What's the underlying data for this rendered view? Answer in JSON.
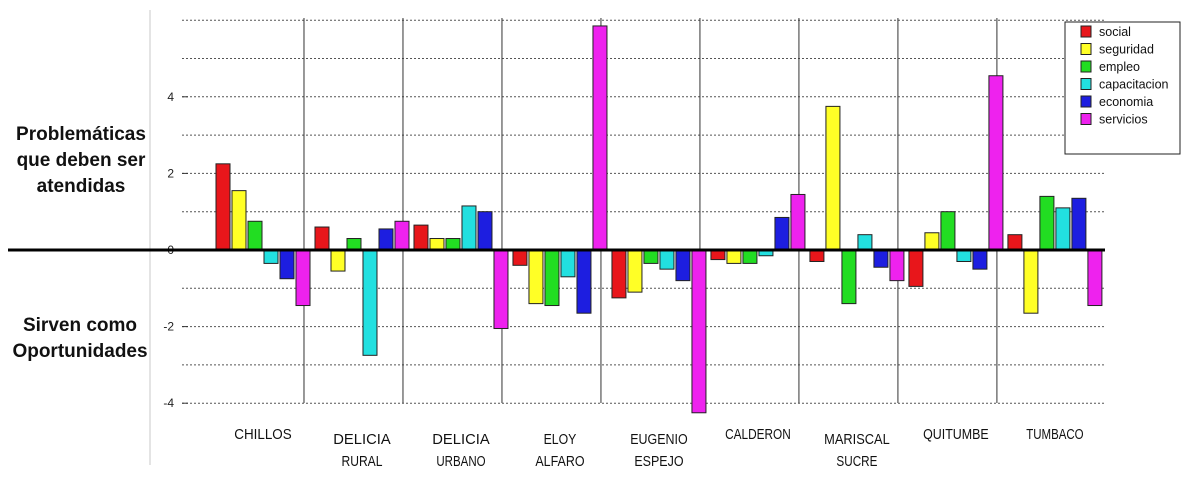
{
  "annotations": {
    "top": [
      "Problemáticas",
      "que deben ser",
      "atendidas"
    ],
    "bottom": [
      "Sirven como",
      "Oportunidades"
    ]
  },
  "chart_data": {
    "type": "bar",
    "title": "",
    "xlabel": "",
    "ylabel": "",
    "ylim": [
      -4.3,
      6.0
    ],
    "yticks": [
      -4,
      -2,
      0,
      2,
      4
    ],
    "grid": true,
    "legend_position": "top-right",
    "categories": [
      [
        "CHILLOS"
      ],
      [
        "DELICIA",
        "RURAL"
      ],
      [
        "DELICIA",
        "URBANO"
      ],
      [
        "ELOY",
        "ALFARO"
      ],
      [
        "EUGENIO",
        "ESPEJO"
      ],
      [
        "CALDERON"
      ],
      [
        "MARISCAL",
        "SUCRE"
      ],
      [
        "QUITUMBE"
      ],
      [
        "TUMBACO"
      ]
    ],
    "series": [
      {
        "name": "social",
        "color": "#e8161b",
        "values": [
          2.25,
          0.6,
          0.65,
          -0.4,
          -1.25,
          -0.25,
          -0.3,
          -0.95,
          0.4
        ]
      },
      {
        "name": "seguridad",
        "color": "#ffff26",
        "values": [
          1.55,
          -0.55,
          0.3,
          -1.4,
          -1.1,
          -0.35,
          3.75,
          0.45,
          -1.65
        ]
      },
      {
        "name": "empleo",
        "color": "#22dd22",
        "values": [
          0.75,
          0.3,
          0.3,
          -1.45,
          -0.35,
          -0.35,
          -1.4,
          1.0,
          1.4
        ]
      },
      {
        "name": "capacitacion",
        "color": "#22e0e0",
        "values": [
          -0.35,
          -2.75,
          1.15,
          -0.7,
          -0.5,
          -0.15,
          0.4,
          -0.3,
          1.1
        ]
      },
      {
        "name": "economia",
        "color": "#1d1ee0",
        "values": [
          -0.75,
          0.55,
          1.0,
          -1.65,
          -0.8,
          0.85,
          -0.45,
          -0.5,
          1.35
        ]
      },
      {
        "name": "servicios",
        "color": "#ee22ee",
        "values": [
          -1.45,
          0.75,
          -2.05,
          5.85,
          -4.25,
          1.45,
          -0.8,
          4.55,
          -1.45
        ]
      }
    ]
  }
}
